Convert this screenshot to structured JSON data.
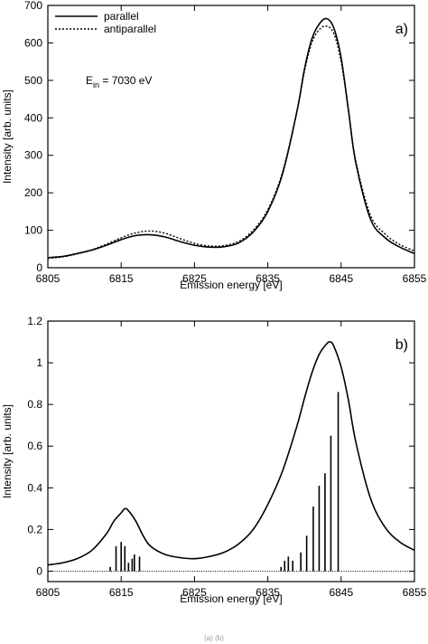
{
  "footer_text": "(a) (b)",
  "chart_data": [
    {
      "type": "line",
      "panel_label": "a)",
      "xlabel": "Emission energy [eV]",
      "ylabel": "Intensity [arb. units]",
      "xlim": [
        6805,
        6855
      ],
      "ylim": [
        0,
        700
      ],
      "xticks": [
        6805,
        6815,
        6825,
        6835,
        6845,
        6855
      ],
      "yticks": [
        0,
        100,
        200,
        300,
        400,
        500,
        600,
        700
      ],
      "grid": false,
      "legend_position": "top-left",
      "annotation": {
        "main": "E",
        "sub": "in",
        "rest": " = 7030 eV"
      },
      "series": [
        {
          "name": "parallel",
          "style": "solid",
          "x": [
            6805,
            6807,
            6809,
            6811,
            6813,
            6815,
            6817,
            6819,
            6821,
            6823,
            6825,
            6827,
            6829,
            6831,
            6833,
            6835,
            6837,
            6839,
            6840,
            6841,
            6842,
            6843,
            6844,
            6845,
            6846,
            6847,
            6849,
            6851,
            6853,
            6855
          ],
          "y": [
            27,
            30,
            38,
            47,
            60,
            75,
            86,
            88,
            82,
            70,
            60,
            55,
            56,
            66,
            95,
            150,
            250,
            420,
            530,
            610,
            650,
            665,
            640,
            560,
            420,
            280,
            130,
            80,
            55,
            38
          ]
        },
        {
          "name": "antiparallel",
          "style": "dotted",
          "x": [
            6805,
            6807,
            6809,
            6811,
            6813,
            6815,
            6817,
            6819,
            6821,
            6823,
            6825,
            6827,
            6829,
            6831,
            6833,
            6835,
            6837,
            6839,
            6840,
            6841,
            6842,
            6843,
            6844,
            6845,
            6846,
            6847,
            6849,
            6851,
            6853,
            6855
          ],
          "y": [
            25,
            29,
            37,
            48,
            63,
            80,
            93,
            98,
            92,
            78,
            65,
            58,
            59,
            70,
            100,
            155,
            255,
            420,
            525,
            600,
            635,
            645,
            625,
            550,
            420,
            285,
            140,
            90,
            62,
            45
          ]
        }
      ]
    },
    {
      "type": "line",
      "panel_label": "b)",
      "xlabel": "Emission energy [eV]",
      "ylabel": "Intensity [arb. units]",
      "xlim": [
        6805,
        6855
      ],
      "ylim": [
        -0.05,
        1.2
      ],
      "xticks": [
        6805,
        6815,
        6825,
        6835,
        6845,
        6855
      ],
      "yticks": [
        0,
        0.2,
        0.4,
        0.6,
        0.8,
        1,
        1.2
      ],
      "grid": false,
      "series": [
        {
          "style": "solid",
          "x": [
            6805,
            6807,
            6809,
            6811,
            6813,
            6814,
            6815,
            6815.5,
            6816,
            6817,
            6818,
            6819,
            6821,
            6823,
            6825,
            6827,
            6829,
            6831,
            6833,
            6835,
            6837,
            6839,
            6840,
            6841,
            6842,
            6843,
            6843.5,
            6844,
            6845,
            6846,
            6847,
            6849,
            6851,
            6853,
            6855
          ],
          "y": [
            0.03,
            0.04,
            0.06,
            0.1,
            0.18,
            0.24,
            0.28,
            0.3,
            0.29,
            0.24,
            0.17,
            0.12,
            0.08,
            0.065,
            0.06,
            0.07,
            0.09,
            0.13,
            0.2,
            0.32,
            0.48,
            0.7,
            0.83,
            0.95,
            1.04,
            1.09,
            1.1,
            1.08,
            0.98,
            0.82,
            0.62,
            0.35,
            0.21,
            0.14,
            0.1
          ]
        },
        {
          "style": "sticks",
          "x": [
            6813.5,
            6814.3,
            6815.0,
            6815.5,
            6816.0,
            6816.5,
            6816.8,
            6817.5,
            6836.8,
            6837.3,
            6837.8,
            6838.4,
            6839.5,
            6840.3,
            6841.2,
            6842.0,
            6842.8,
            6843.6,
            6844.6
          ],
          "y": [
            0.02,
            0.12,
            0.14,
            0.12,
            0.04,
            0.06,
            0.08,
            0.07,
            0.02,
            0.05,
            0.07,
            0.05,
            0.09,
            0.17,
            0.31,
            0.41,
            0.47,
            0.65,
            0.86
          ]
        },
        {
          "style": "dotted-baseline",
          "x": [
            6805,
            6855
          ],
          "y": [
            0,
            0
          ]
        }
      ]
    }
  ]
}
